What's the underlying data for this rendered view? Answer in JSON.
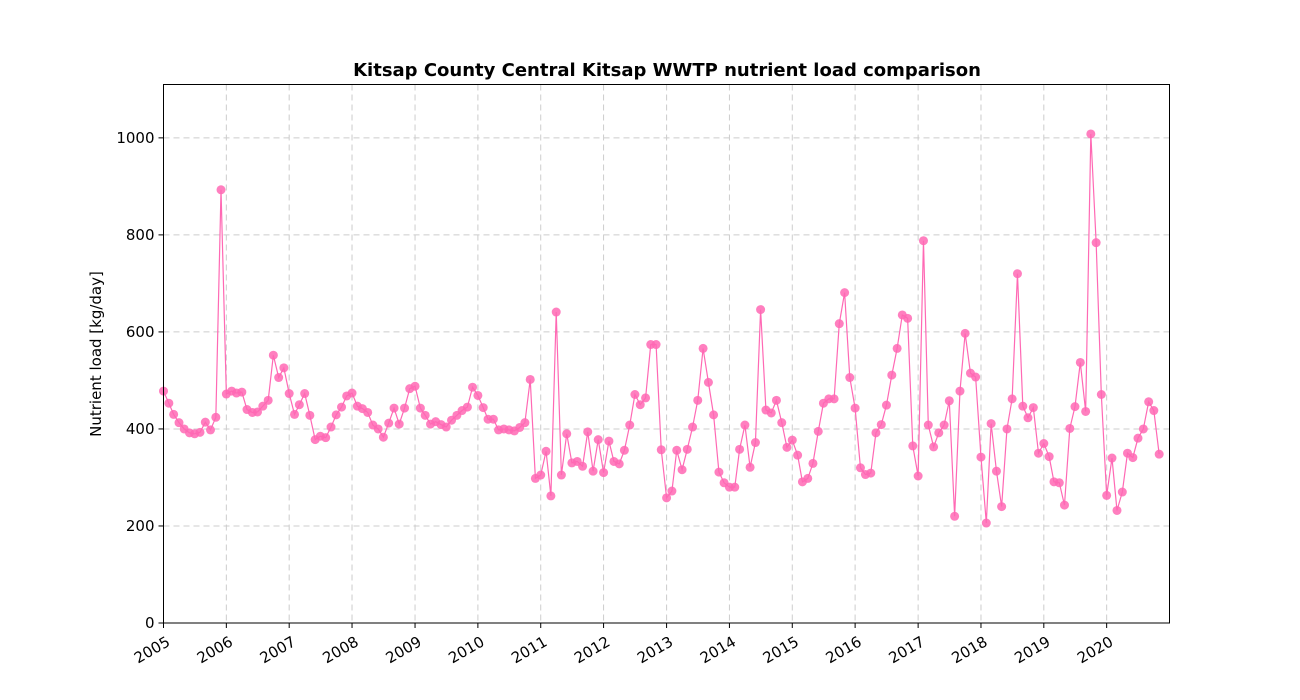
{
  "chart_data": {
    "type": "line",
    "title": "Kitsap County Central Kitsap WWTP nutrient load comparison",
    "xlabel": "",
    "ylabel": "Nutrient load [kg/day]",
    "ylim": [
      0,
      1110
    ],
    "xlim": [
      "2005-01-01",
      "2020-12-31"
    ],
    "yticks": [
      0,
      200,
      400,
      600,
      800,
      1000
    ],
    "xticks": [
      "2005",
      "2006",
      "2007",
      "2008",
      "2009",
      "2010",
      "2011",
      "2012",
      "2013",
      "2014",
      "2015",
      "2016",
      "2017",
      "2018",
      "2019",
      "2020"
    ],
    "grid": true,
    "color": "#ff69b4",
    "series": [
      {
        "name": "",
        "start": "2005-01",
        "frequency": "monthly",
        "values": [
          478,
          453,
          430,
          413,
          400,
          392,
          390,
          393,
          414,
          398,
          424,
          893,
          472,
          478,
          474,
          476,
          440,
          434,
          435,
          447,
          459,
          552,
          506,
          526,
          473,
          430,
          450,
          473,
          428,
          378,
          385,
          382,
          404,
          429,
          445,
          468,
          474,
          447,
          442,
          434,
          408,
          400,
          383,
          412,
          443,
          410,
          443,
          483,
          488,
          443,
          428,
          410,
          415,
          409,
          404,
          418,
          428,
          438,
          445,
          486,
          469,
          444,
          420,
          420,
          398,
          400,
          398,
          396,
          403,
          413,
          502,
          298,
          305,
          354,
          262,
          641,
          305,
          390,
          330,
          333,
          323,
          394,
          313,
          378,
          310,
          375,
          333,
          328,
          356,
          408,
          471,
          450,
          464,
          574,
          574,
          357,
          258,
          272,
          356,
          316,
          358,
          404,
          459,
          566,
          496,
          429,
          311,
          289,
          280,
          280,
          358,
          408,
          321,
          372,
          646,
          439,
          433,
          459,
          413,
          362,
          377,
          346,
          291,
          298,
          329,
          395,
          453,
          462,
          462,
          617,
          681,
          506,
          443,
          320,
          306,
          309,
          392,
          409,
          449,
          511,
          566,
          635,
          628,
          365,
          303,
          788,
          408,
          363,
          392,
          408,
          458,
          220,
          478,
          597,
          515,
          507,
          342,
          206,
          411,
          313,
          240,
          400,
          462,
          720,
          447,
          423,
          444,
          350,
          370,
          343,
          291,
          289,
          243,
          401,
          446,
          537,
          436,
          1008,
          784,
          471,
          263,
          340,
          232,
          270,
          350,
          341,
          381,
          400,
          456,
          438,
          348
        ]
      }
    ]
  }
}
